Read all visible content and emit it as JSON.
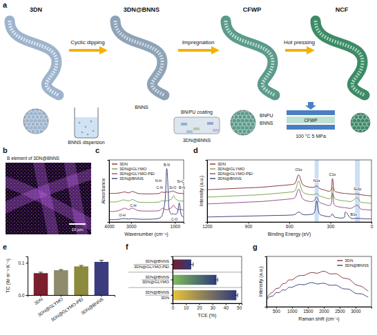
{
  "diagram": {
    "panel": "a",
    "stages": [
      "3DN",
      "3DN@BNNS",
      "CFWP",
      "NCF"
    ],
    "steps": [
      "Cyclic dipping",
      "Impregnation",
      "Hot pressing"
    ],
    "labels": {
      "dispersion": "BNNS dispersion",
      "coating": "BN/PU coating",
      "tray": "3DN@BNNS",
      "bnns_tube": "BNNS",
      "bnpu": "BNPU",
      "bnns_cfwp": "BNNS",
      "press": "CFWP",
      "conditions": "100 °C 5 MPa"
    }
  },
  "image": {
    "panel": "b",
    "title": "B element of 3DN@BNNS",
    "scale_bar": "10 μm"
  },
  "chart_data": [
    {
      "panel": "c",
      "type": "line",
      "x_label": "Wavenumber (cm⁻¹)",
      "y_label": "Absorbance",
      "x": [
        4000,
        3700,
        3500,
        3400,
        3300,
        3100,
        2950,
        2870,
        2700,
        2500,
        2000,
        1700,
        1600,
        1550,
        1450,
        1370,
        1300,
        1250,
        1150,
        1100,
        1050,
        1000,
        900,
        800,
        700,
        600
      ],
      "xlim": [
        4000,
        600
      ],
      "xticks": [
        4000,
        3000,
        1000
      ],
      "ylim": [
        0,
        6.5
      ],
      "tick_labels": "x",
      "legend": "top-left",
      "series": [
        {
          "name": "3DN",
          "color": "#7a1f2b",
          "values": [
            3.0,
            3.0,
            3.05,
            3.1,
            3.15,
            3.05,
            3.2,
            3.15,
            3.0,
            2.95,
            2.95,
            3.0,
            3.15,
            3.1,
            3.1,
            3.15,
            3.1,
            3.15,
            3.2,
            3.25,
            3.2,
            3.15,
            3.05,
            3.0,
            3.0,
            2.95
          ]
        },
        {
          "name": "3DN@GLYMO",
          "color": "#6f9a3a",
          "values": [
            2.1,
            2.1,
            2.2,
            2.3,
            2.3,
            2.2,
            2.35,
            2.3,
            2.1,
            2.05,
            2.05,
            2.1,
            2.25,
            2.2,
            2.2,
            2.25,
            2.2,
            2.3,
            2.4,
            2.65,
            2.75,
            2.5,
            2.3,
            2.2,
            2.2,
            2.15
          ]
        },
        {
          "name": "3DN@GLYMO-PEI",
          "color": "#8a3c78",
          "values": [
            1.1,
            1.12,
            1.25,
            1.35,
            1.45,
            1.3,
            1.45,
            1.4,
            1.2,
            1.15,
            1.15,
            1.2,
            1.4,
            1.45,
            1.3,
            1.3,
            1.3,
            1.4,
            1.5,
            1.7,
            1.75,
            1.55,
            1.35,
            1.3,
            1.3,
            1.25
          ]
        },
        {
          "name": "3DN@BNNS",
          "color": "#2b2f6e",
          "values": [
            0.25,
            0.25,
            0.3,
            0.35,
            0.35,
            0.3,
            0.35,
            0.33,
            0.3,
            0.28,
            0.3,
            0.4,
            0.6,
            0.9,
            2.2,
            5.6,
            3.0,
            1.2,
            0.8,
            0.85,
            0.85,
            0.8,
            0.9,
            2.0,
            0.7,
            0.5
          ]
        }
      ],
      "annotations": [
        {
          "text": "O-H",
          "x": 3400,
          "y": 0.6
        },
        {
          "text": "C-H",
          "x": 2900,
          "y": 1.6
        },
        {
          "text": "N-H",
          "x": 1750,
          "y": 4.2
        },
        {
          "text": "C-N",
          "x": 1700,
          "y": 3.45
        },
        {
          "text": "B-N",
          "x": 1370,
          "y": 5.85
        },
        {
          "text": "Si-O",
          "x": 1100,
          "y": 3.5
        },
        {
          "text": "Si-C",
          "x": 740,
          "y": 4.15
        },
        {
          "text": "B-N",
          "x": 680,
          "y": 3.5
        },
        {
          "text": "C-O",
          "x": 1020,
          "y": 0.12
        }
      ]
    },
    {
      "panel": "d",
      "type": "line",
      "x_label": "Binding Energy (eV)",
      "y_label": "Intensity (a.u.)",
      "x": [
        1200,
        1100,
        1000,
        900,
        800,
        700,
        600,
        560,
        532,
        500,
        450,
        420,
        400,
        380,
        350,
        300,
        285,
        270,
        250,
        200,
        190,
        150,
        102,
        80,
        50,
        0
      ],
      "xlim": [
        1200,
        0
      ],
      "xticks": [
        1200,
        900,
        600,
        300,
        0
      ],
      "ylim": [
        0,
        10
      ],
      "tick_labels": "x",
      "legend": "top-left",
      "bands": [
        {
          "x0": 385,
          "x1": 415
        },
        {
          "x0": 85,
          "x1": 120
        }
      ],
      "series": [
        {
          "name": "3DN",
          "color": "#7a1f2b",
          "values": [
            5.2,
            5.3,
            5.4,
            5.5,
            5.6,
            5.8,
            6.0,
            6.2,
            7.6,
            6.0,
            5.6,
            5.6,
            5.8,
            5.4,
            5.2,
            5.0,
            7.0,
            5.0,
            4.8,
            4.6,
            4.6,
            4.5,
            4.5,
            4.4,
            4.3,
            4.2
          ]
        },
        {
          "name": "3DN@GLYMO",
          "color": "#6f9a3a",
          "values": [
            4.0,
            4.1,
            4.2,
            4.3,
            4.4,
            4.6,
            4.8,
            5.0,
            6.6,
            4.8,
            4.4,
            4.4,
            4.6,
            4.2,
            4.0,
            3.8,
            5.6,
            3.8,
            3.6,
            3.4,
            3.4,
            3.3,
            3.9,
            3.2,
            3.1,
            3.0
          ]
        },
        {
          "name": "3DN@GLYMO-PEI",
          "color": "#8a3c78",
          "values": [
            2.9,
            3.0,
            3.1,
            3.2,
            3.3,
            3.5,
            3.7,
            3.9,
            5.3,
            3.7,
            3.3,
            3.4,
            4.0,
            3.2,
            2.9,
            2.7,
            4.6,
            2.7,
            2.5,
            2.3,
            2.3,
            2.2,
            2.7,
            2.1,
            2.0,
            1.9
          ]
        },
        {
          "name": "3DN@BNNS",
          "color": "#2b2f6e",
          "values": [
            0.8,
            0.85,
            0.9,
            0.95,
            1.0,
            1.05,
            1.1,
            1.2,
            1.6,
            1.2,
            1.2,
            1.4,
            3.4,
            1.3,
            1.0,
            0.9,
            1.3,
            0.8,
            0.7,
            0.7,
            1.6,
            0.6,
            0.6,
            0.55,
            0.5,
            0.5
          ]
        }
      ],
      "annotations": [
        {
          "text": "C1s",
          "x": 285,
          "y": 7.5
        },
        {
          "text": "N1s",
          "x": 400,
          "y": 6.4
        },
        {
          "text": "O1s",
          "x": 532,
          "y": 8.2
        },
        {
          "text": "Si2p",
          "x": 102,
          "y": 5.1
        },
        {
          "text": "B1s",
          "x": 130,
          "y": 0.95
        }
      ]
    },
    {
      "panel": "e",
      "type": "bar",
      "y_label": "TC (W·m⁻¹·K⁻¹)",
      "categories": [
        "3DN",
        "3DN@GLYMO",
        "3DN@GLYMO-PEI",
        "3DN@BNNS"
      ],
      "values": [
        0.068,
        0.077,
        0.089,
        0.103
      ],
      "errors": [
        0.003,
        0.002,
        0.003,
        0.005
      ],
      "colors": [
        "#7a1f2b",
        "#8f8c6e",
        "#8c8a3c",
        "#3b3c7e"
      ],
      "ylim": [
        0,
        0.12
      ],
      "yticks": [
        {
          "value": 0,
          "label": "0.0"
        },
        0.1
      ]
    },
    {
      "panel": "f",
      "type": "bar",
      "orientation": "horizontal",
      "x_label": "TCE (%)",
      "categories": [
        "3DN@BNNS 3DN@GLYMO-PEI",
        "3DN@BNNS 3DN@GLYMO",
        "3DN@BNNS 3DN"
      ],
      "values": [
        14,
        33,
        48
      ],
      "errors": [
        1.5,
        1,
        1
      ],
      "colors": [
        "#7a1f2b",
        "#7fbf5a",
        "#e8c43a"
      ],
      "xlim": [
        0,
        52
      ],
      "xticks": [
        0,
        10,
        20,
        30,
        40,
        50
      ]
    },
    {
      "panel": "g",
      "type": "line",
      "x_label": "Raman shift (cm⁻¹)",
      "y_label": "Intensity (a.u.)",
      "x": [
        200,
        300,
        400,
        500,
        600,
        700,
        800,
        900,
        1000,
        1200,
        1400,
        1600,
        1800,
        2000,
        2200,
        2400,
        2600,
        2800,
        3000,
        3200,
        3400
      ],
      "xlim": [
        200,
        3500
      ],
      "xticks": [
        500,
        1000,
        1500,
        2000,
        2500,
        3000
      ],
      "ylim": [
        2,
        9.5
      ],
      "tick_labels": "x",
      "legend": "top-right",
      "series": [
        {
          "name": "3DN",
          "color": "#7a1f2b",
          "values": [
            3.2,
            3.9,
            4.2,
            4.7,
            4.8,
            5.4,
            5.5,
            6.0,
            6.0,
            6.6,
            6.7,
            7.1,
            7.0,
            7.3,
            6.9,
            6.9,
            6.3,
            6.1,
            5.3,
            5.0,
            4.3
          ]
        },
        {
          "name": "3DN@BNNS",
          "color": "#2b2f6e",
          "values": [
            3.0,
            3.5,
            3.6,
            4.1,
            4.1,
            4.5,
            4.5,
            4.9,
            4.9,
            5.3,
            5.3,
            5.6,
            5.4,
            5.5,
            5.2,
            5.2,
            4.7,
            4.6,
            4.0,
            3.9,
            3.4
          ]
        }
      ]
    }
  ]
}
